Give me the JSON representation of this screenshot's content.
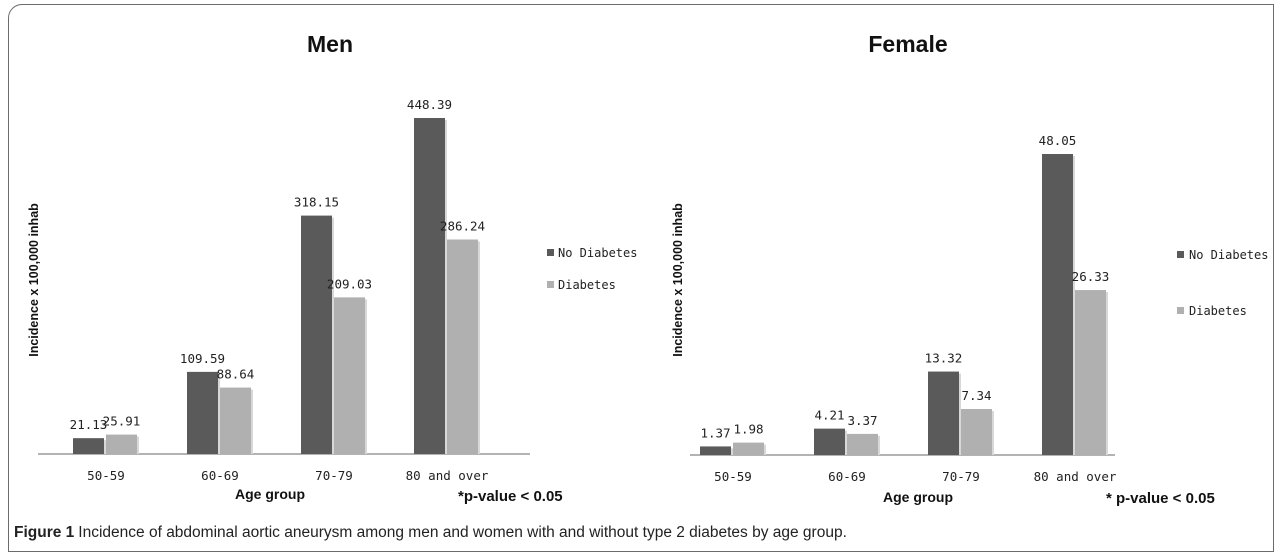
{
  "chart_data": [
    {
      "type": "bar",
      "title": "Men",
      "xlabel": "Age group",
      "ylabel": "Incidence x 100,000 inhab",
      "categories": [
        "50-59",
        "60-69",
        "70-79",
        "80 and over"
      ],
      "series": [
        {
          "name": "No Diabetes",
          "values": [
            21.13,
            109.59,
            318.15,
            448.39
          ],
          "labels": [
            "21.13",
            "109.59",
            "318.15",
            "448.39"
          ],
          "color": "#5a5a5a"
        },
        {
          "name": "Diabetes",
          "values": [
            25.91,
            88.64,
            209.03,
            286.24
          ],
          "labels": [
            "25.91",
            "88.64",
            "209.03",
            "286.24"
          ],
          "color": "#b0b0b0"
        }
      ],
      "ylim": [
        0,
        448.39
      ],
      "legend": "right",
      "grid": false,
      "annotation": "*p-value < 0.05"
    },
    {
      "type": "bar",
      "title": "Female",
      "xlabel": "Age group",
      "ylabel": "Incidence x 100,000 inhab",
      "categories": [
        "50-59",
        "60-69",
        "70-79",
        "80 and over"
      ],
      "series": [
        {
          "name": "No Diabetes",
          "values": [
            1.37,
            4.21,
            13.32,
            48.05
          ],
          "labels": [
            "1.37",
            "4.21",
            "13.32",
            "48.05"
          ],
          "color": "#5a5a5a"
        },
        {
          "name": "Diabetes",
          "values": [
            1.98,
            3.37,
            7.34,
            26.33
          ],
          "labels": [
            "1.98",
            "3.37",
            "7.34",
            "26.33"
          ],
          "color": "#b0b0b0"
        }
      ],
      "ylim": [
        0,
        48.05
      ],
      "legend": "right",
      "grid": false,
      "annotation": "* p-value < 0.05"
    }
  ],
  "caption": {
    "label": "Figure 1",
    "text": "Incidence of abdominal aortic aneurysm among men and women with and without type 2 diabetes by age group."
  }
}
